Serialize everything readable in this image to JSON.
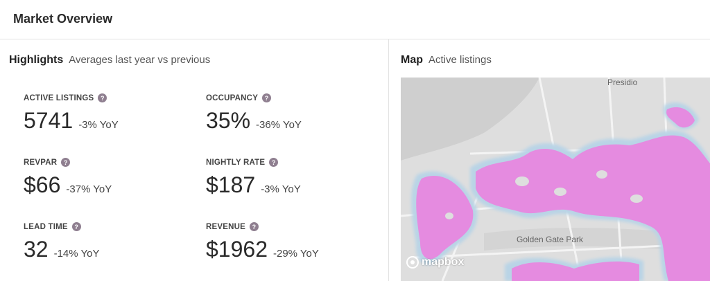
{
  "header": {
    "title": "Market Overview"
  },
  "highlights": {
    "title": "Highlights",
    "subtitle": "Averages last year vs previous",
    "help_glyph": "?",
    "metrics": [
      {
        "label": "ACTIVE LISTINGS",
        "value": "5741",
        "delta": "-3% YoY"
      },
      {
        "label": "OCCUPANCY",
        "value": "35%",
        "delta": "-36% YoY"
      },
      {
        "label": "REVPAR",
        "value": "$66",
        "delta": "-37% YoY"
      },
      {
        "label": "NIGHTLY RATE",
        "value": "$187",
        "delta": "-3% YoY"
      },
      {
        "label": "LEAD TIME",
        "value": "32",
        "delta": "-14% YoY"
      },
      {
        "label": "REVENUE",
        "value": "$1962",
        "delta": "-29% YoY"
      }
    ]
  },
  "map": {
    "title": "Map",
    "subtitle": "Active listings",
    "labels": {
      "presidio": "Presidio",
      "golden_gate_park": "Golden Gate Park"
    },
    "attribution": "mapbox",
    "colors": {
      "land": "#dcdcdc",
      "water": "#cfcfcf",
      "heat": "#e58be0",
      "halo": "#b9d4e6",
      "road": "#f2f2f2"
    }
  }
}
